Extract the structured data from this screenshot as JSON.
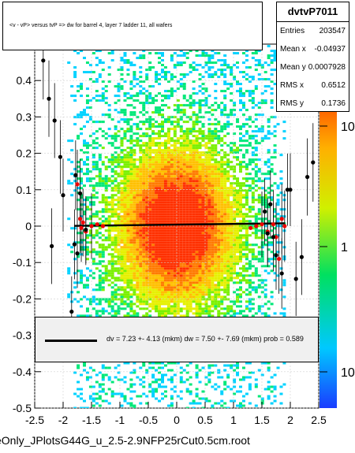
{
  "chart_data": {
    "type": "heatmap",
    "title": "<v - vP>       versus  tvP =>  dw for barrel 4, layer 7 ladder 11, all wafers",
    "xlim": [
      -2.5,
      2.5
    ],
    "ylim": [
      -0.5,
      0.5
    ],
    "x_ticks": [
      "-2.5",
      "-2",
      "-1.5",
      "-1",
      "-0.5",
      "0",
      "0.5",
      "1",
      "1.5",
      "2",
      "2.5"
    ],
    "y_ticks": [
      "-0.5",
      "-0.4",
      "-0.3",
      "-0.2",
      "-0.1",
      "0",
      "0.1",
      "0.2",
      "0.3",
      "0.4"
    ],
    "colorbar_ticks": [
      "10",
      "1",
      "10"
    ],
    "log_z": true,
    "grid": true,
    "profile_points": [
      {
        "x": -2.35,
        "y": 0.455
      },
      {
        "x": -2.25,
        "y": 0.35
      },
      {
        "x": -2.15,
        "y": 0.29
      },
      {
        "x": -2.05,
        "y": 0.19
      },
      {
        "x": -2.0,
        "y": 0.085
      },
      {
        "x": -2.2,
        "y": -0.055
      },
      {
        "x": -1.85,
        "y": -0.235
      },
      {
        "x": -1.8,
        "y": -0.05
      },
      {
        "x": -1.75,
        "y": -0.075
      },
      {
        "x": -1.7,
        "y": 0.09
      },
      {
        "x": -1.78,
        "y": 0.14
      },
      {
        "x": -1.6,
        "y": -0.01
      },
      {
        "x": 1.6,
        "y": -0.02
      },
      {
        "x": 1.7,
        "y": -0.03
      },
      {
        "x": 1.75,
        "y": -0.08
      },
      {
        "x": 1.85,
        "y": -0.13
      },
      {
        "x": 1.95,
        "y": 0.1
      },
      {
        "x": 2.0,
        "y": 0.1
      },
      {
        "x": 2.1,
        "y": -0.145
      },
      {
        "x": 2.2,
        "y": -0.085
      },
      {
        "x": 2.3,
        "y": 0.135
      },
      {
        "x": 2.4,
        "y": 0.175
      },
      {
        "x": 1.65,
        "y": 0.06
      },
      {
        "x": 1.55,
        "y": 0.04
      }
    ],
    "red_points": [
      {
        "x": -1.75,
        "y": 0.115
      },
      {
        "x": -1.7,
        "y": 0.02
      },
      {
        "x": -1.68,
        "y": -0.005
      },
      {
        "x": -1.65,
        "y": 0.01
      },
      {
        "x": -1.6,
        "y": -0.015
      },
      {
        "x": -1.5,
        "y": 0.0
      },
      {
        "x": -1.4,
        "y": 0.005
      },
      {
        "x": -1.3,
        "y": 0.0
      },
      {
        "x": 1.3,
        "y": -0.005
      },
      {
        "x": 1.4,
        "y": 0.0
      },
      {
        "x": 1.5,
        "y": 0.005
      },
      {
        "x": 1.6,
        "y": -0.015
      },
      {
        "x": 1.7,
        "y": 0.005
      },
      {
        "x": 1.75,
        "y": -0.03
      },
      {
        "x": 1.8,
        "y": -0.09
      },
      {
        "x": 1.85,
        "y": 0.02
      },
      {
        "x": 1.9,
        "y": 0.0
      }
    ],
    "fit_line": {
      "x": [
        -1.8,
        1.9
      ],
      "y": [
        0.0007,
        0.0077
      ]
    }
  },
  "stats": {
    "name": "dvtvP7011",
    "rows": [
      {
        "k": "Entries",
        "v": "203547"
      },
      {
        "k": "Mean x",
        "v": "-0.04937"
      },
      {
        "k": "Mean y",
        "v": "0.0007928"
      },
      {
        "k": "RMS x",
        "v": "0.6512"
      },
      {
        "k": "RMS y",
        "v": "0.1736"
      }
    ]
  },
  "fit_text": "dv =    7.23 +-  4.13 (mkm) dw =    7.50 +-  7.69 (mkm) prob = 0.589",
  "footer": "eOnly_JPlotsG44G_u_2.5-2.9NFP25rCut0.5cm.root",
  "colors": {
    "axis": "#000000",
    "grid": "#d0d0d0",
    "marker_black": "#000000",
    "marker_red": "#ee0000"
  }
}
